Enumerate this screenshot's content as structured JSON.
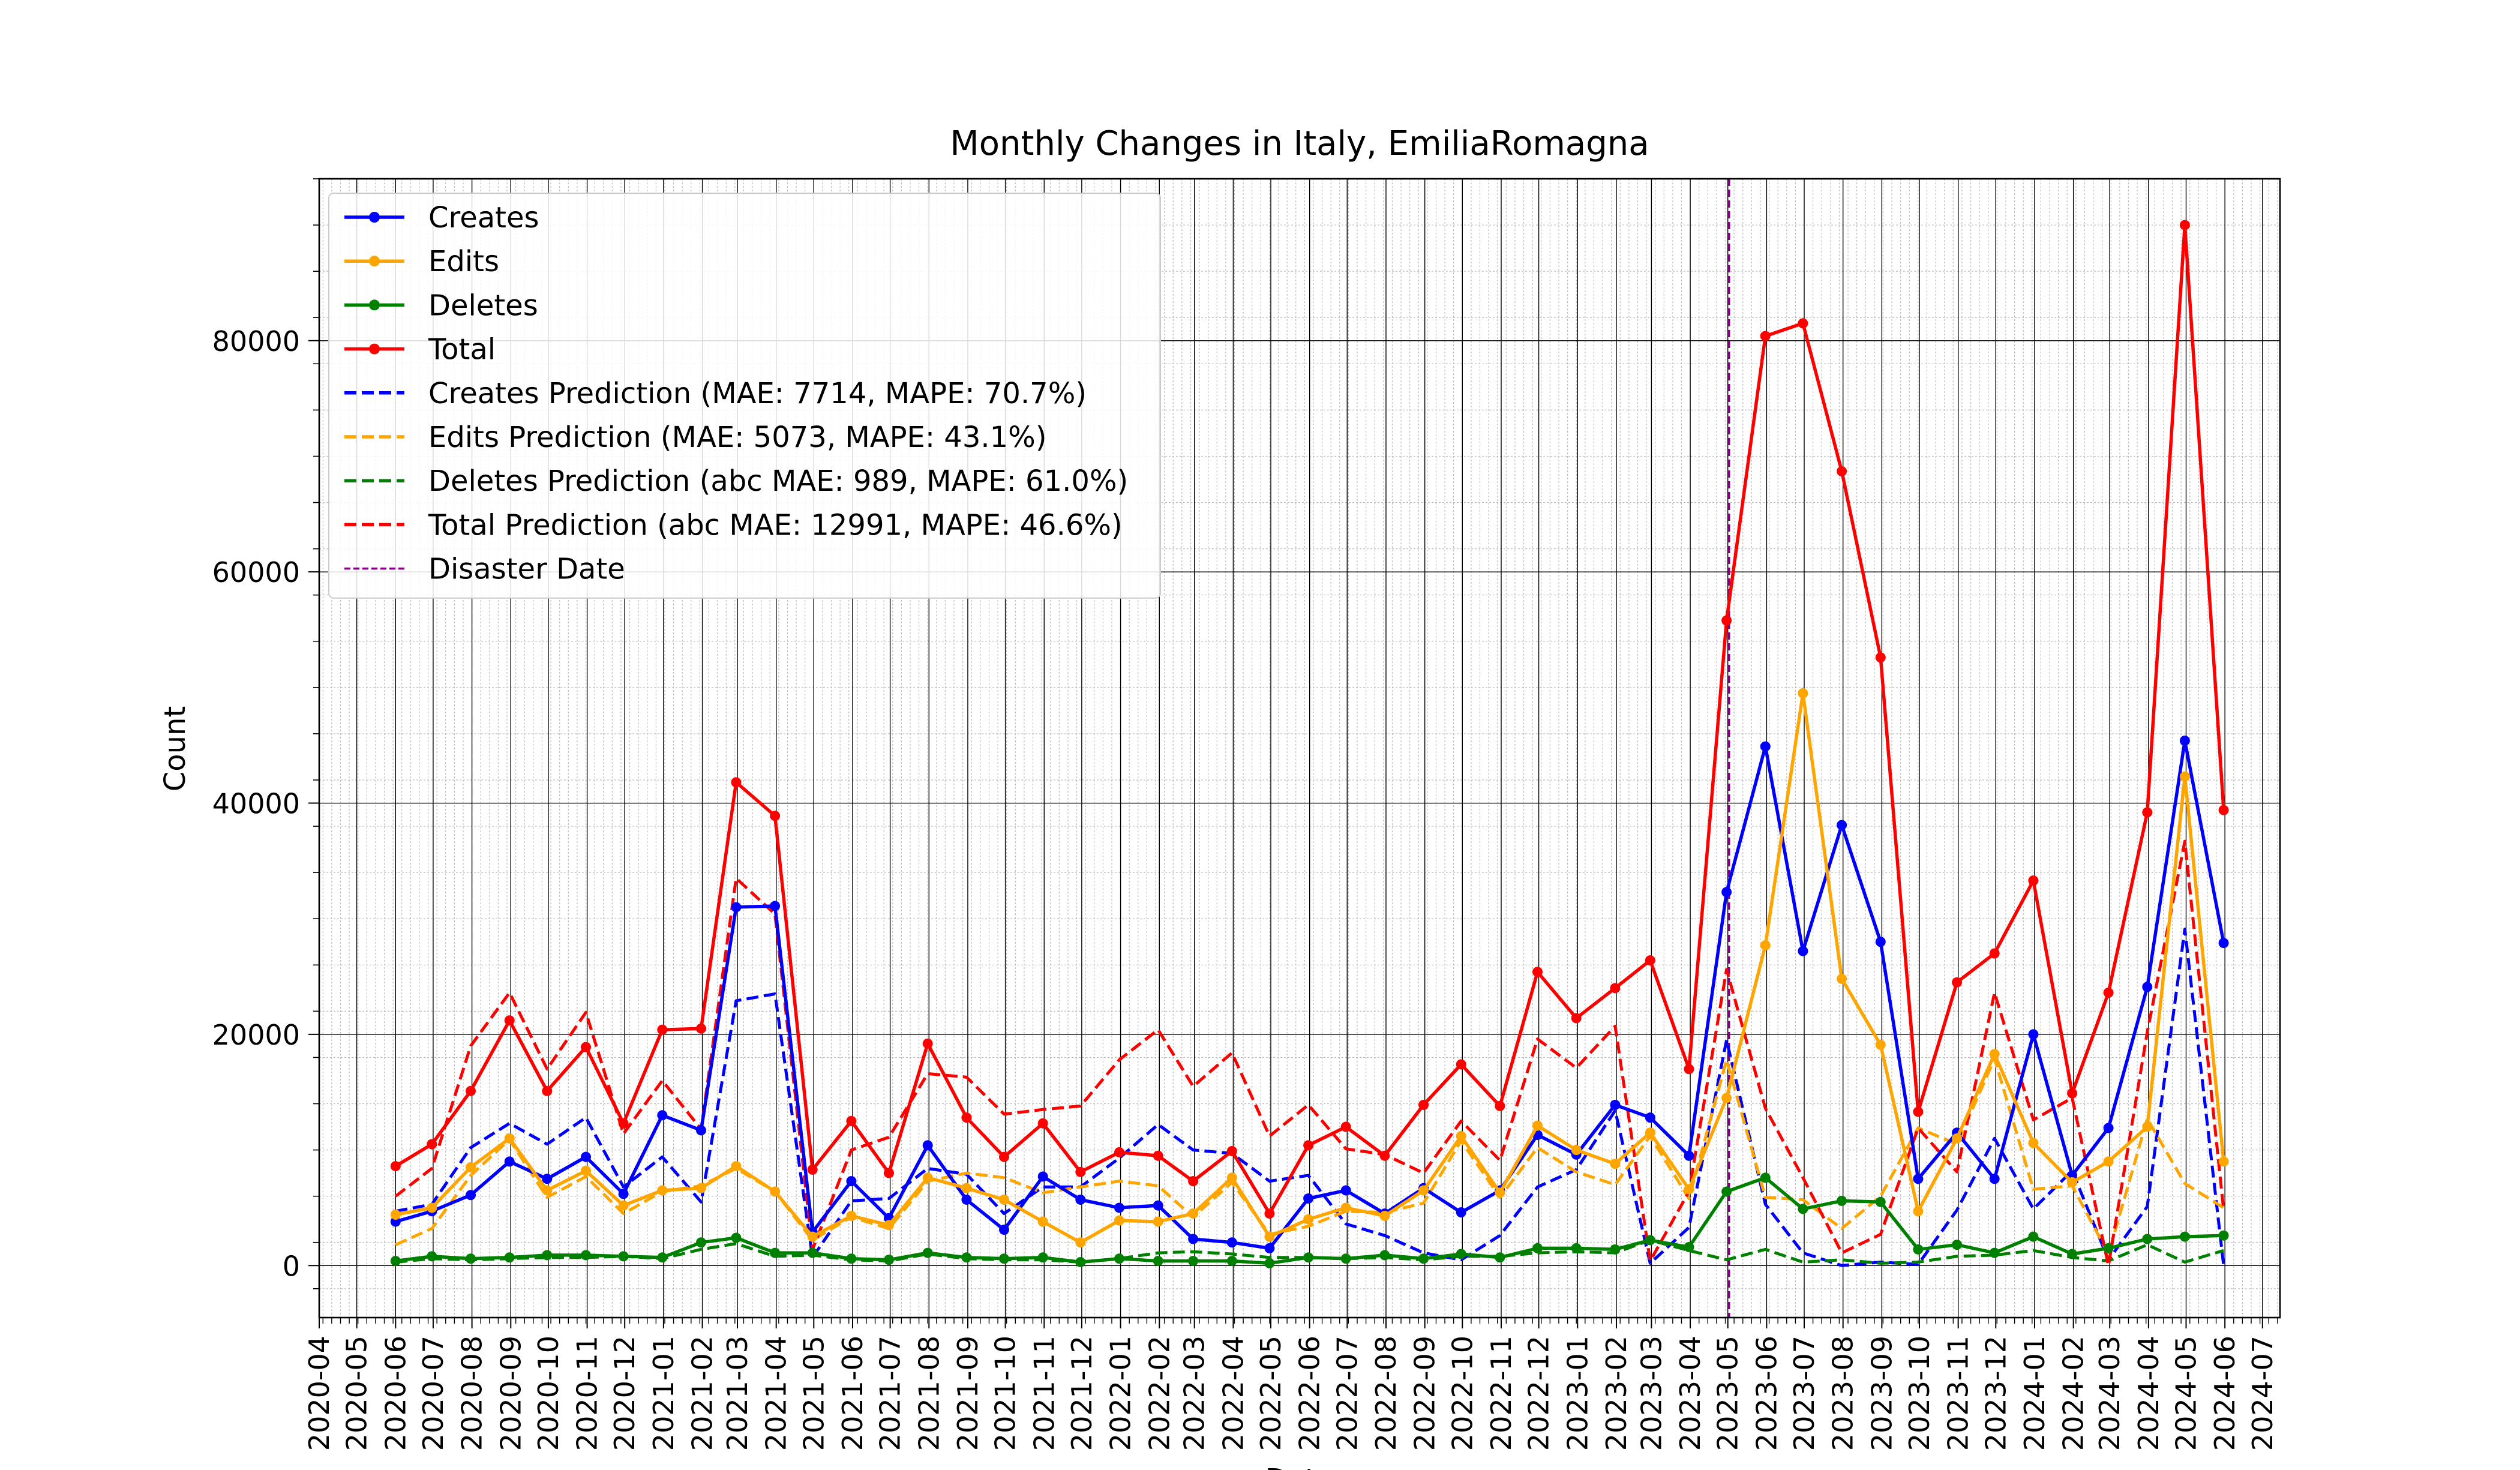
{
  "chart_data": {
    "type": "line",
    "title": "Monthly Changes in Italy, EmiliaRomagna",
    "xlabel": "Date",
    "ylabel": "Count",
    "x_range": [
      "2020-04-01",
      "2024-07-15"
    ],
    "ylim": [
      -4500,
      94000
    ],
    "y_ticks": [
      0,
      20000,
      40000,
      60000,
      80000
    ],
    "x_ticks": [
      "2020-04",
      "2020-05",
      "2020-06",
      "2020-07",
      "2020-08",
      "2020-09",
      "2020-10",
      "2020-11",
      "2020-12",
      "2021-01",
      "2021-02",
      "2021-03",
      "2021-04",
      "2021-05",
      "2021-06",
      "2021-07",
      "2021-08",
      "2021-09",
      "2021-10",
      "2021-11",
      "2021-12",
      "2022-01",
      "2022-02",
      "2022-03",
      "2022-04",
      "2022-05",
      "2022-06",
      "2022-07",
      "2022-08",
      "2022-09",
      "2022-10",
      "2022-11",
      "2022-12",
      "2023-01",
      "2023-02",
      "2023-03",
      "2023-04",
      "2023-05",
      "2023-06",
      "2023-07",
      "2023-08",
      "2023-09",
      "2023-10",
      "2023-11",
      "2023-12",
      "2024-01",
      "2024-02",
      "2024-03",
      "2024-04",
      "2024-05",
      "2024-06",
      "2024-07"
    ],
    "grid": true,
    "legend_position": "upper-left",
    "x": [
      "2020-06-01",
      "2020-06-30",
      "2020-07-31",
      "2020-08-31",
      "2020-09-30",
      "2020-10-31",
      "2020-11-30",
      "2020-12-31",
      "2021-01-31",
      "2021-02-28",
      "2021-03-31",
      "2021-04-30",
      "2021-05-31",
      "2021-06-30",
      "2021-07-31",
      "2021-08-31",
      "2021-09-30",
      "2021-10-31",
      "2021-11-30",
      "2021-12-31",
      "2022-01-31",
      "2022-02-28",
      "2022-03-31",
      "2022-04-30",
      "2022-05-31",
      "2022-06-30",
      "2022-07-31",
      "2022-08-31",
      "2022-09-30",
      "2022-10-31",
      "2022-11-30",
      "2022-12-31",
      "2023-01-31",
      "2023-02-28",
      "2023-03-31",
      "2023-04-30",
      "2023-05-31",
      "2023-06-30",
      "2023-07-31",
      "2023-08-31",
      "2023-09-30",
      "2023-10-31",
      "2023-11-30",
      "2023-12-31",
      "2024-01-31",
      "2024-02-29",
      "2024-03-31",
      "2024-04-30",
      "2024-05-31"
    ],
    "series": [
      {
        "name": "Creates",
        "color": "#0000ff",
        "style": "solid",
        "marker": true,
        "values": [
          3800,
          4700,
          6100,
          9000,
          7500,
          9400,
          6200,
          13000,
          11700,
          31000,
          31100,
          2900,
          7300,
          4100,
          10400,
          5700,
          3100,
          7700,
          5700,
          5000,
          5200,
          2300,
          2000,
          1500,
          5800,
          6500,
          4500,
          6700,
          4600,
          6500,
          11300,
          9600,
          13900,
          12800,
          9500,
          32300,
          44900,
          27200,
          38100,
          28000,
          7500,
          11500,
          7500,
          20000,
          7800,
          11900,
          24100,
          45400,
          27900
        ]
      },
      {
        "name": "Edits",
        "color": "#ffa500",
        "style": "solid",
        "marker": true,
        "values": [
          4400,
          5000,
          8500,
          11000,
          6500,
          8200,
          5200,
          6500,
          6700,
          8600,
          6400,
          2500,
          4300,
          3500,
          7600,
          6700,
          5700,
          3800,
          2000,
          3900,
          3800,
          4500,
          7600,
          2500,
          4000,
          5000,
          4300,
          6500,
          11200,
          6300,
          12100,
          10000,
          8800,
          11500,
          6600,
          14500,
          27700,
          49500,
          24800,
          19100,
          4700,
          11000,
          18300,
          10600,
          7200,
          9000,
          12000,
          42300,
          9000
        ]
      },
      {
        "name": "Deletes",
        "color": "#008000",
        "style": "solid",
        "marker": true,
        "values": [
          400,
          800,
          600,
          700,
          900,
          900,
          800,
          700,
          2000,
          2400,
          1100,
          1100,
          600,
          500,
          1100,
          700,
          600,
          700,
          300,
          600,
          400,
          400,
          400,
          200,
          700,
          600,
          900,
          600,
          1000,
          700,
          1500,
          1500,
          1400,
          2200,
          1600,
          6400,
          7600,
          4900,
          5600,
          5500,
          1400,
          1800,
          1100,
          2500,
          1000,
          1500,
          2300,
          2500,
          2600
        ]
      },
      {
        "name": "Total",
        "color": "#ff0000",
        "style": "solid",
        "marker": true,
        "values": [
          8600,
          10500,
          15100,
          21200,
          15100,
          18900,
          12300,
          20400,
          20500,
          41800,
          38900,
          8300,
          12500,
          8000,
          19200,
          12800,
          9400,
          12300,
          8100,
          9800,
          9500,
          7300,
          9900,
          4500,
          10400,
          12000,
          9500,
          13900,
          17400,
          13800,
          25400,
          21400,
          24000,
          26400,
          17000,
          55800,
          80400,
          81500,
          68700,
          52600,
          13300,
          24500,
          27000,
          33300,
          14900,
          23600,
          39200,
          90000,
          39400
        ]
      },
      {
        "name": "Creates Prediction (MAE: 7714, MAPE: 70.7%)",
        "color": "#0000ff",
        "style": "dashed",
        "marker": false,
        "values": [
          4700,
          5300,
          10200,
          12300,
          10500,
          12800,
          6800,
          9400,
          5500,
          22900,
          23500,
          700,
          5600,
          5800,
          8400,
          7900,
          4500,
          6800,
          6800,
          9300,
          12200,
          10000,
          9700,
          7300,
          7800,
          3600,
          2600,
          1100,
          500,
          2600,
          6800,
          8300,
          13400,
          200,
          3300,
          19500,
          5300,
          1100,
          0,
          300,
          100,
          4800,
          11000,
          4900,
          8200,
          500,
          5100,
          29100,
          0
        ]
      },
      {
        "name": "Edits Prediction (MAE: 5073, MAPE: 43.1%)",
        "color": "#ffa500",
        "style": "dashed",
        "marker": false,
        "values": [
          1800,
          3200,
          7800,
          10900,
          5900,
          7700,
          4500,
          6400,
          6900,
          8400,
          6400,
          2200,
          4200,
          3200,
          7300,
          8000,
          7600,
          6300,
          6800,
          7300,
          6900,
          4200,
          7200,
          2700,
          3400,
          4700,
          4600,
          5400,
          10800,
          5900,
          10200,
          8100,
          7000,
          11200,
          5800,
          17800,
          5900,
          5700,
          3200,
          6000,
          11900,
          10500,
          17900,
          6600,
          6900,
          1000,
          12700,
          7100,
          5000
        ]
      },
      {
        "name": "Deletes Prediction (abc MAE: 989, MAPE: 61.0%)",
        "color": "#008000",
        "style": "dashed",
        "marker": false,
        "values": [
          300,
          600,
          500,
          600,
          700,
          700,
          800,
          600,
          1400,
          1900,
          800,
          900,
          500,
          400,
          1000,
          600,
          500,
          500,
          300,
          600,
          1100,
          1200,
          1000,
          700,
          700,
          600,
          700,
          500,
          800,
          800,
          1100,
          1200,
          1100,
          2200,
          1300,
          500,
          1400,
          300,
          500,
          200,
          300,
          800,
          900,
          1300,
          700,
          400,
          1800,
          300,
          1300
        ]
      },
      {
        "name": "Total Prediction (abc MAE: 12991, MAPE: 46.6%)",
        "color": "#ff0000",
        "style": "dashed",
        "marker": false,
        "values": [
          6000,
          8400,
          19000,
          23600,
          17000,
          21900,
          11400,
          16000,
          11800,
          33500,
          30400,
          1400,
          10000,
          11100,
          16600,
          16300,
          13100,
          13500,
          13800,
          17800,
          20400,
          15500,
          18400,
          11200,
          13900,
          10100,
          9600,
          8000,
          12500,
          9100,
          19600,
          17100,
          20700,
          400,
          6400,
          25600,
          13600,
          7600,
          1100,
          2700,
          11900,
          8100,
          23600,
          12600,
          14500,
          0,
          20200,
          36700,
          4800
        ]
      }
    ],
    "annotations": [
      {
        "type": "vertical-line",
        "x": "2023-05-02",
        "label": "Disaster Date",
        "color": "#800080",
        "style": "dashed"
      }
    ]
  }
}
